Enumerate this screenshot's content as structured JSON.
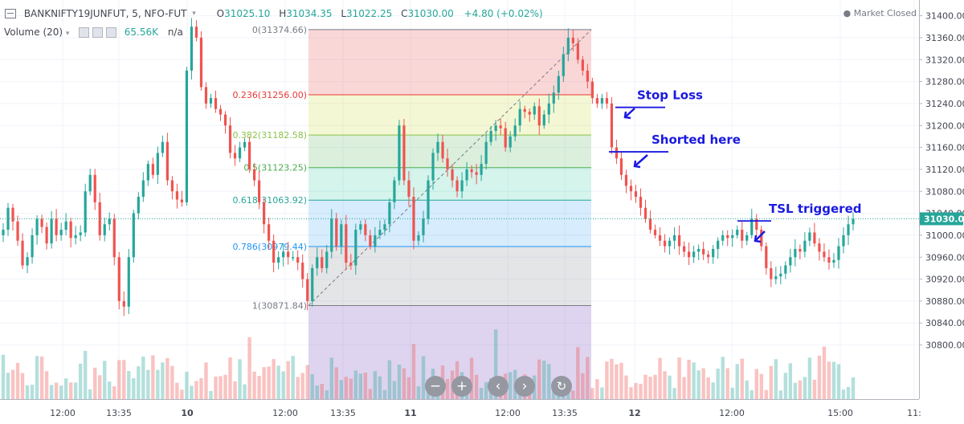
{
  "header": {
    "symbol": "BANKNIFTY19JUNFUT, 5, NFO-FUT",
    "open_label": "O",
    "open": "31025.10",
    "high_label": "H",
    "high": "31034.35",
    "low_label": "L",
    "low": "31022.25",
    "close_label": "C",
    "close": "31030.00",
    "change": "+4.80 (+0.02%)",
    "volume_label": "Volume (20)",
    "volume_value": "65.56K",
    "volume_extra": "n/a",
    "market_status": "Market Closed"
  },
  "chart_data": {
    "type": "candlestick",
    "instrument": "BANKNIFTY19JUNFUT",
    "timeframe_minutes": 5,
    "ylim": [
      30790,
      31410
    ],
    "y_ticks": [
      30800,
      30840,
      30880,
      30920,
      30960,
      31000,
      31040,
      31080,
      31120,
      31160,
      31200,
      31240,
      31280,
      31320,
      31360,
      31400
    ],
    "x_tick_labels": [
      "12:00",
      "13:35",
      "10",
      "12:00",
      "13:35",
      "11",
      "12:00",
      "13:35",
      "12",
      "12:00",
      "15:00",
      "11:"
    ],
    "last_price": "31030.00",
    "fibonacci": [
      {
        "ratio": "0",
        "price": 31374.66,
        "label": "0(31374.66)",
        "color": "#787b86"
      },
      {
        "ratio": "0.236",
        "price": 31256.0,
        "label": "0.236(31256.00)",
        "color": "#e53935"
      },
      {
        "ratio": "0.382",
        "price": 31182.58,
        "label": "0.382(31182.58)",
        "color": "#8bc34a"
      },
      {
        "ratio": "0.5",
        "price": 31123.25,
        "label": "0.5(31123.25)",
        "color": "#4caf50"
      },
      {
        "ratio": "0.618",
        "price": 31063.92,
        "label": "0.618(31063.92)",
        "color": "#26a69a"
      },
      {
        "ratio": "0.786",
        "price": 30979.44,
        "label": "0.786(30979.44)",
        "color": "#2196f3"
      },
      {
        "ratio": "1",
        "price": 30871.84,
        "label": "1(30871.84)",
        "color": "#787b86"
      }
    ],
    "annotations": [
      {
        "text": "Stop Loss",
        "price": 31233
      },
      {
        "text": "Shorted here",
        "price": 31152
      },
      {
        "text": "TSL triggered",
        "price": 31026
      }
    ],
    "candles_approx": [
      31010,
      31050,
      31025,
      30990,
      30945,
      30960,
      31000,
      31030,
      31015,
      30985,
      31030,
      31000,
      31010,
      31025,
      30995,
      31000,
      31005,
      31080,
      31110,
      31060,
      31000,
      31020,
      31030,
      30960,
      30880,
      30870,
      30960,
      31040,
      31070,
      31100,
      31130,
      31110,
      31150,
      31170,
      31100,
      31080,
      31065,
      31060,
      31300,
      31380,
      31360,
      31270,
      31240,
      31250,
      31230,
      31220,
      31200,
      31150,
      31140,
      31160,
      31170,
      31120,
      31100,
      31060,
      31020,
      30990,
      30950,
      30960,
      30970,
      30960,
      30960,
      30950,
      30920,
      30880,
      30940,
      30960,
      30940,
      30970,
      31030,
      30980,
      31020,
      30950,
      30945,
      31010,
      31020,
      31000,
      30980,
      31000,
      31010,
      31020,
      31060,
      31100,
      31200,
      31100,
      31070,
      30990,
      31000,
      31030,
      31100,
      31150,
      31170,
      31140,
      31120,
      31100,
      31080,
      31100,
      31120,
      31115,
      31110,
      31130,
      31170,
      31190,
      31200,
      31195,
      31160,
      31180,
      31200,
      31230,
      31225,
      31220,
      31235,
      31200,
      31220,
      31240,
      31260,
      31290,
      31330,
      31360,
      31350,
      31320,
      31300,
      31280,
      31250,
      31240,
      31250,
      31240,
      31160,
      31140,
      31110,
      31090,
      31080,
      31070,
      31050,
      31030,
      31010,
      31000,
      30990,
      30980,
      30990,
      31000,
      30980,
      30970,
      30960,
      30970,
      30975,
      30965,
      30960,
      30975,
      30990,
      31000,
      30995,
      31000,
      31010,
      30990,
      31000,
      31030,
      31010,
      30980,
      30940,
      30920,
      30925,
      30930,
      30945,
      30960,
      30975,
      30970,
      30990,
      31005,
      30985,
      30970,
      30960,
      30950,
      30955,
      30980,
      31000,
      31020,
      31030
    ]
  }
}
